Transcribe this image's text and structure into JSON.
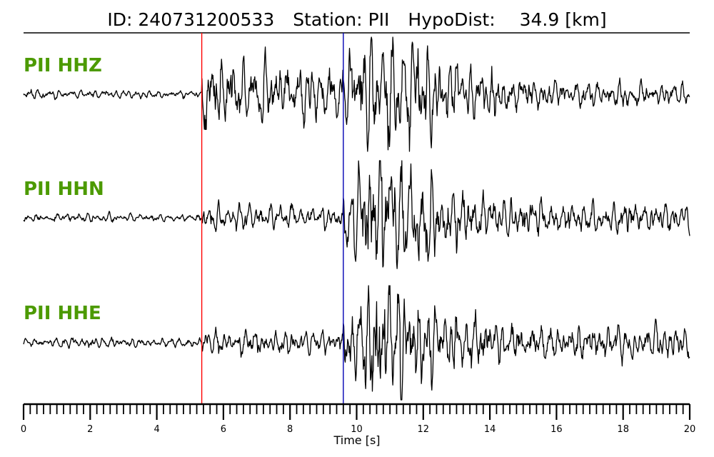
{
  "chart_data": {
    "type": "line",
    "title": {
      "id_label": "ID:",
      "id_value": "240731200533",
      "station_label": "Station:",
      "station_value": "PII",
      "hypodist_label": "HypoDist:",
      "hypodist_value": "34.9",
      "hypodist_unit": "[km]"
    },
    "xlabel": "Time [s]",
    "xlim": [
      0,
      20
    ],
    "x_major_ticks": [
      "0",
      "2",
      "4",
      "6",
      "8",
      "10",
      "12",
      "14",
      "16",
      "18",
      "20"
    ],
    "x_minor_step": 0.2,
    "label_color": "#4c9a00",
    "p_pick": {
      "time": 5.35,
      "color": "#ff0000"
    },
    "s_pick": {
      "time": 9.6,
      "color": "#0000b4"
    },
    "series": [
      {
        "name": "PII HHZ",
        "noise_amp": 0.06,
        "p_amp": 0.55,
        "s_amp": 0.55,
        "peak_amp": 1.0,
        "peak_time": 11.5,
        "coda_amp": 0.18,
        "color": "#000000"
      },
      {
        "name": "PII HHN",
        "noise_amp": 0.06,
        "p_amp": 0.2,
        "s_amp": 0.45,
        "peak_amp": 1.0,
        "peak_time": 11.2,
        "coda_amp": 0.22,
        "color": "#000000"
      },
      {
        "name": "PII HHE",
        "noise_amp": 0.07,
        "p_amp": 0.2,
        "s_amp": 0.45,
        "peak_amp": 1.0,
        "peak_time": 11.0,
        "coda_amp": 0.25,
        "color": "#000000"
      }
    ]
  }
}
